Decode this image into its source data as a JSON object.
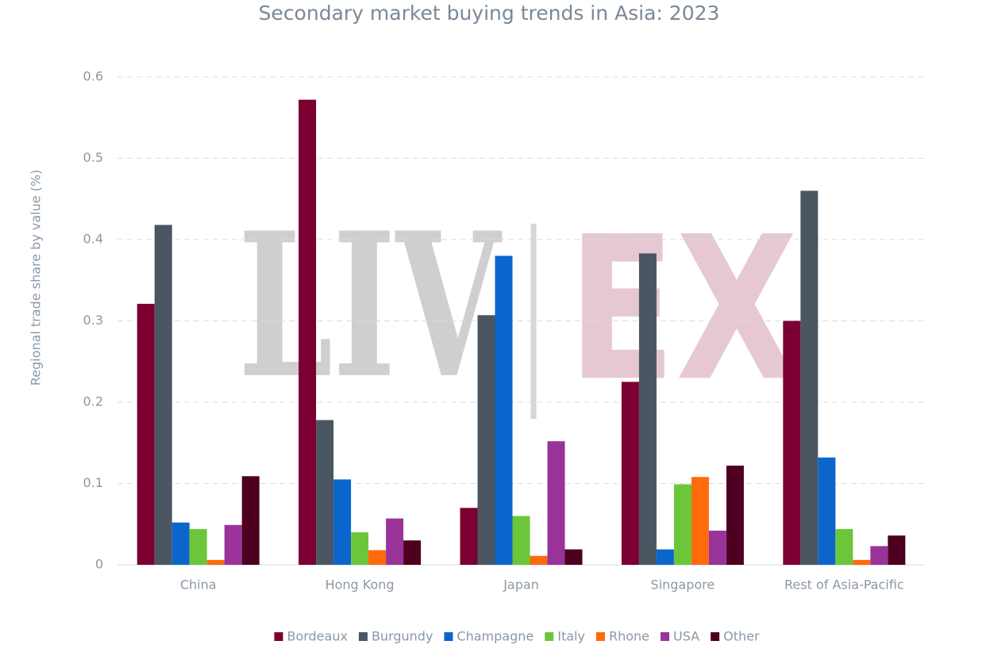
{
  "chart_data": {
    "type": "bar",
    "title": "Secondary market buying trends in Asia: 2023",
    "y_label": "Regional trade share by value (%)",
    "watermark": [
      "LIV",
      "EX"
    ],
    "categories": [
      "China",
      "Hong Kong",
      "Japan",
      "Singapore",
      "Rest of Asia-Pacific"
    ],
    "series": [
      {
        "name": "Bordeaux",
        "color": "#7b0031",
        "values": [
          0.321,
          0.572,
          0.07,
          0.225,
          0.3
        ]
      },
      {
        "name": "Burgundy",
        "color": "#4a5661",
        "values": [
          0.418,
          0.178,
          0.307,
          0.383,
          0.46
        ]
      },
      {
        "name": "Champagne",
        "color": "#0a66cc",
        "values": [
          0.052,
          0.105,
          0.38,
          0.019,
          0.132
        ]
      },
      {
        "name": "Italy",
        "color": "#6cc63a",
        "values": [
          0.044,
          0.04,
          0.06,
          0.099,
          0.044
        ]
      },
      {
        "name": "Rhone",
        "color": "#ff6a0a",
        "values": [
          0.006,
          0.018,
          0.011,
          0.108,
          0.006
        ]
      },
      {
        "name": "USA",
        "color": "#993399",
        "values": [
          0.049,
          0.057,
          0.152,
          0.042,
          0.023
        ]
      },
      {
        "name": "Other",
        "color": "#4d0020",
        "values": [
          0.109,
          0.03,
          0.019,
          0.122,
          0.036
        ]
      }
    ],
    "ylim": [
      0,
      0.6
    ],
    "yticks": [
      0,
      0.1,
      0.2,
      0.3,
      0.4,
      0.5,
      0.6
    ],
    "grid": true,
    "legend": "bottom"
  }
}
